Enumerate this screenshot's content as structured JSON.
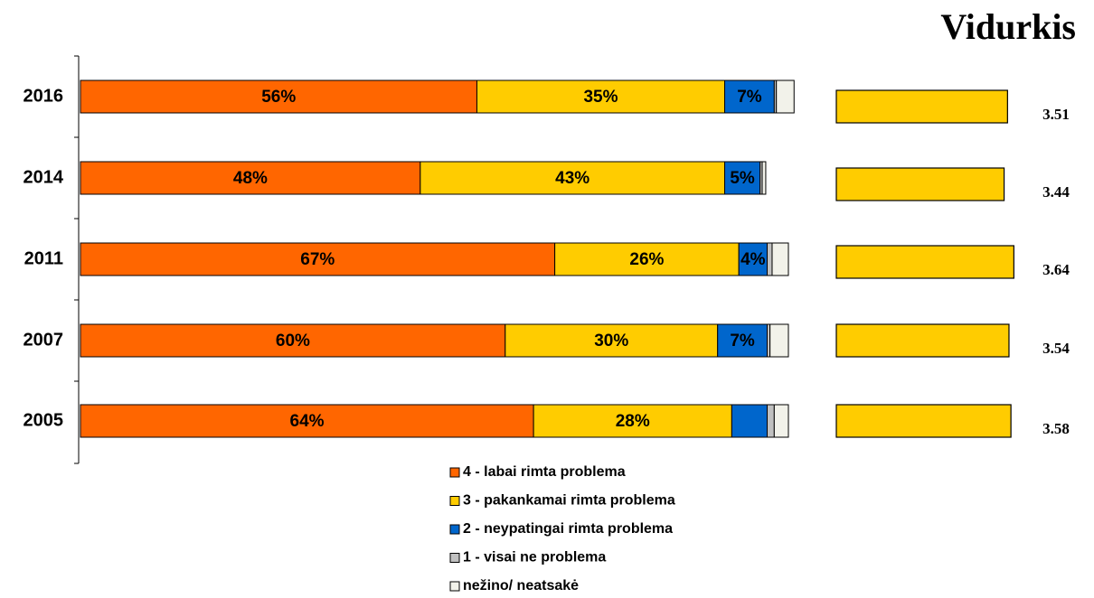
{
  "chart_data": {
    "type": "stacked-bar-horizontal",
    "categories": [
      "2016",
      "2014",
      "2011",
      "2007",
      "2005"
    ],
    "xlim": [
      0,
      100
    ],
    "series": [
      {
        "name": "4 - labai rimta problema",
        "color": "#ff6600",
        "values": [
          56,
          48,
          67,
          60,
          64
        ],
        "value_labels": [
          "56%",
          "48%",
          "67%",
          "60%",
          "64%"
        ]
      },
      {
        "name": "3 - pakankamai rimta problema",
        "color": "#ffcc00",
        "values": [
          35,
          43,
          26,
          30,
          28
        ],
        "value_labels": [
          "35%",
          "43%",
          "26%",
          "30%",
          "28%"
        ]
      },
      {
        "name": "2 - neypatingai rimta problema",
        "color": "#0066cc",
        "values": [
          7,
          5,
          4,
          7,
          5
        ],
        "value_labels": [
          "7%",
          "5%",
          "4%",
          "7%",
          null
        ]
      },
      {
        "name": "1 - visai ne problema",
        "color": "#c0c0c0",
        "values": [
          0.3,
          0.3,
          0.7,
          0.4,
          1
        ],
        "value_labels": [
          null,
          null,
          null,
          null,
          null
        ]
      },
      {
        "name": "nežino/ neatsakė",
        "color": "#f2f2ea",
        "values": [
          2.5,
          0.5,
          2.3,
          2.6,
          2
        ],
        "value_labels": [
          null,
          null,
          null,
          null,
          null
        ]
      }
    ],
    "average": {
      "title": "Vidurkis",
      "color": "#ffcc00",
      "values": [
        3.51,
        3.44,
        3.64,
        3.54,
        3.58
      ],
      "xlim": [
        0,
        3.8
      ]
    }
  }
}
